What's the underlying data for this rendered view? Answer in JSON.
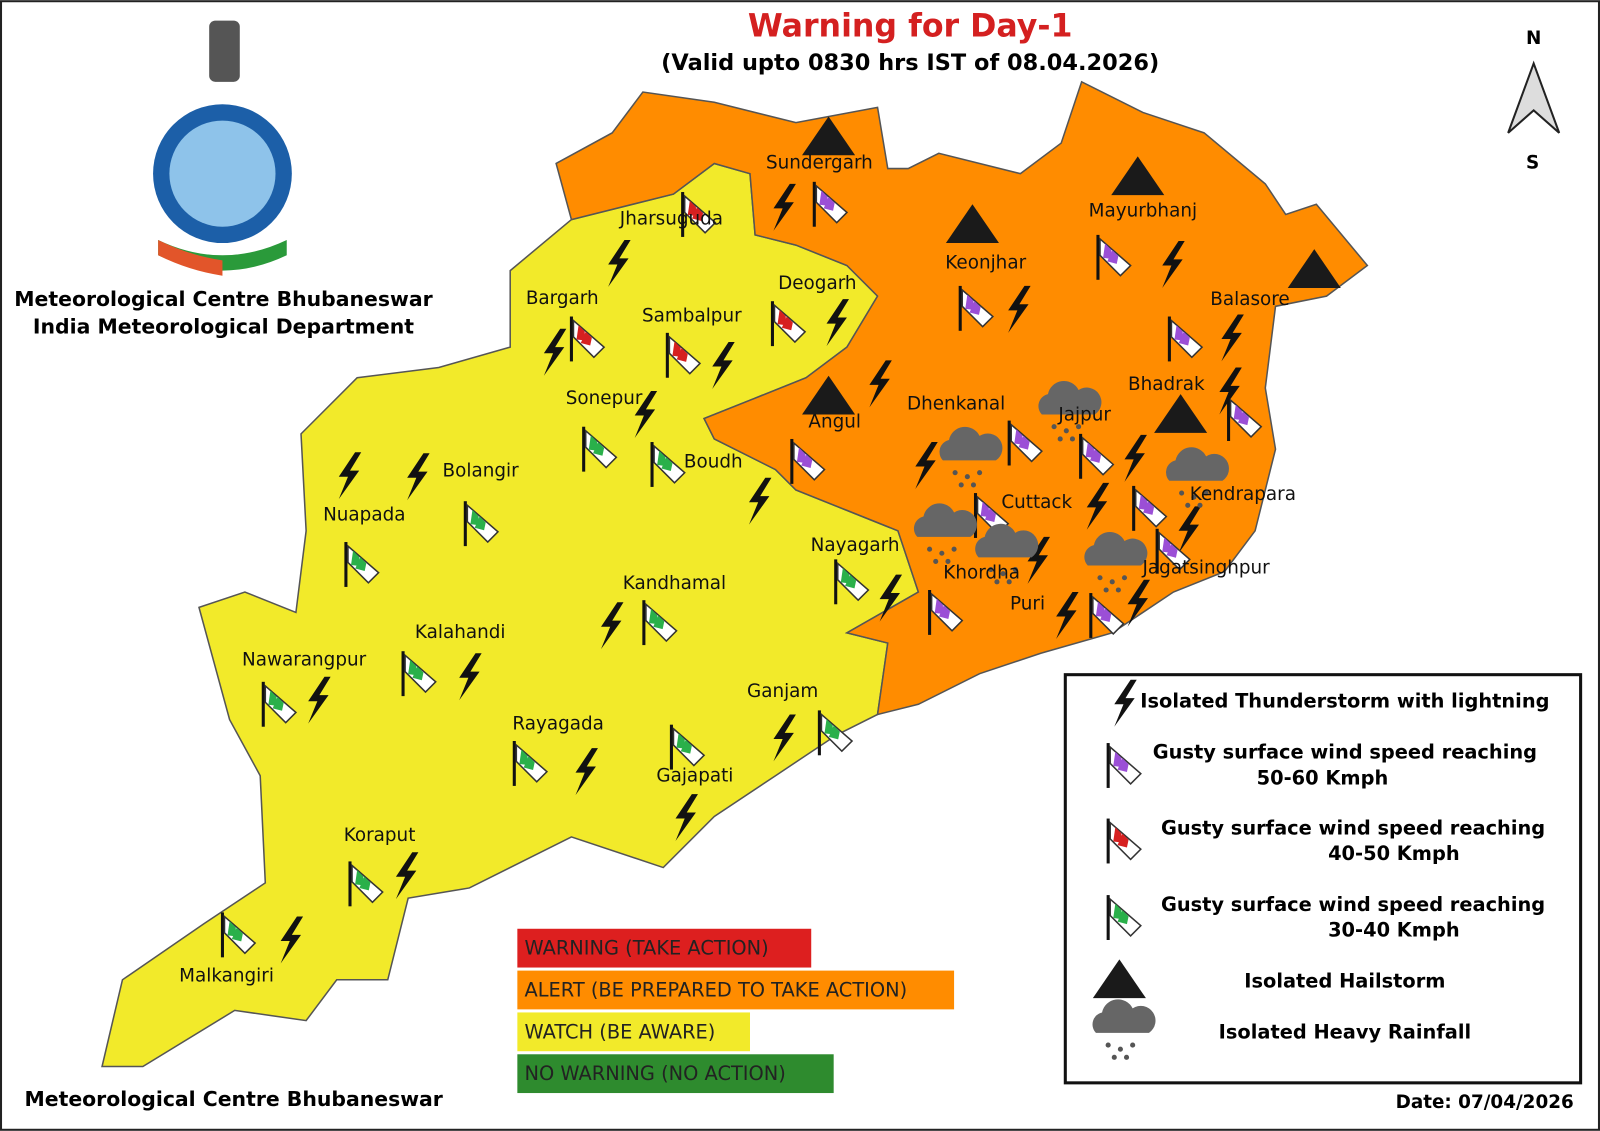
{
  "header": {
    "title": "Warning for Day-1",
    "subtitle": "(Valid upto 0830 hrs IST of 08.04.2026)",
    "organization": [
      "Meteorological Centre Bhubaneswar",
      "India Meteorological Department"
    ]
  },
  "compass": {
    "north": "N",
    "south": "S"
  },
  "districts": [
    "Sundergarh",
    "Jharsuguda",
    "Bargarh",
    "Sambalpur",
    "Deogarh",
    "Keonjhar",
    "Mayurbhanj",
    "Balasore",
    "Bhadrak",
    "Angul",
    "Dhenkanal",
    "Jajpur",
    "Sonepur",
    "Boudh",
    "Bolangir",
    "Nuapada",
    "Cuttack",
    "Kendrapara",
    "Nayagarh",
    "Khordha",
    "Jagatsinghpur",
    "Puri",
    "Kandhamal",
    "Kalahandi",
    "Nawarangpur",
    "Ganjam",
    "Rayagada",
    "Gajapati",
    "Koraput",
    "Malkangiri"
  ],
  "warning_levels": [
    {
      "label": "WARNING (TAKE ACTION)",
      "color": "#dd1f1f"
    },
    {
      "label": "ALERT (BE PREPARED TO TAKE ACTION)",
      "color": "#ff8c00"
    },
    {
      "label": "WATCH (BE AWARE)",
      "color": "#f2ea2a"
    },
    {
      "label": "NO WARNING (NO ACTION)",
      "color": "#2e8b2e"
    }
  ],
  "legend": [
    {
      "lines": [
        "Isolated Thunderstorm with lightning"
      ]
    },
    {
      "lines": [
        "Gusty surface wind speed reaching",
        "50-60 Kmph"
      ]
    },
    {
      "lines": [
        "Gusty surface wind speed reaching",
        "40-50 Kmph"
      ]
    },
    {
      "lines": [
        "Gusty surface wind speed reaching",
        "30-40 Kmph"
      ]
    },
    {
      "lines": [
        "Isolated Hailstorm"
      ]
    },
    {
      "lines": [
        "Isolated Heavy Rainfall"
      ]
    }
  ],
  "footer": {
    "organization": "Meteorological Centre Bhubaneswar",
    "date": "Date: 07/04/2026"
  }
}
